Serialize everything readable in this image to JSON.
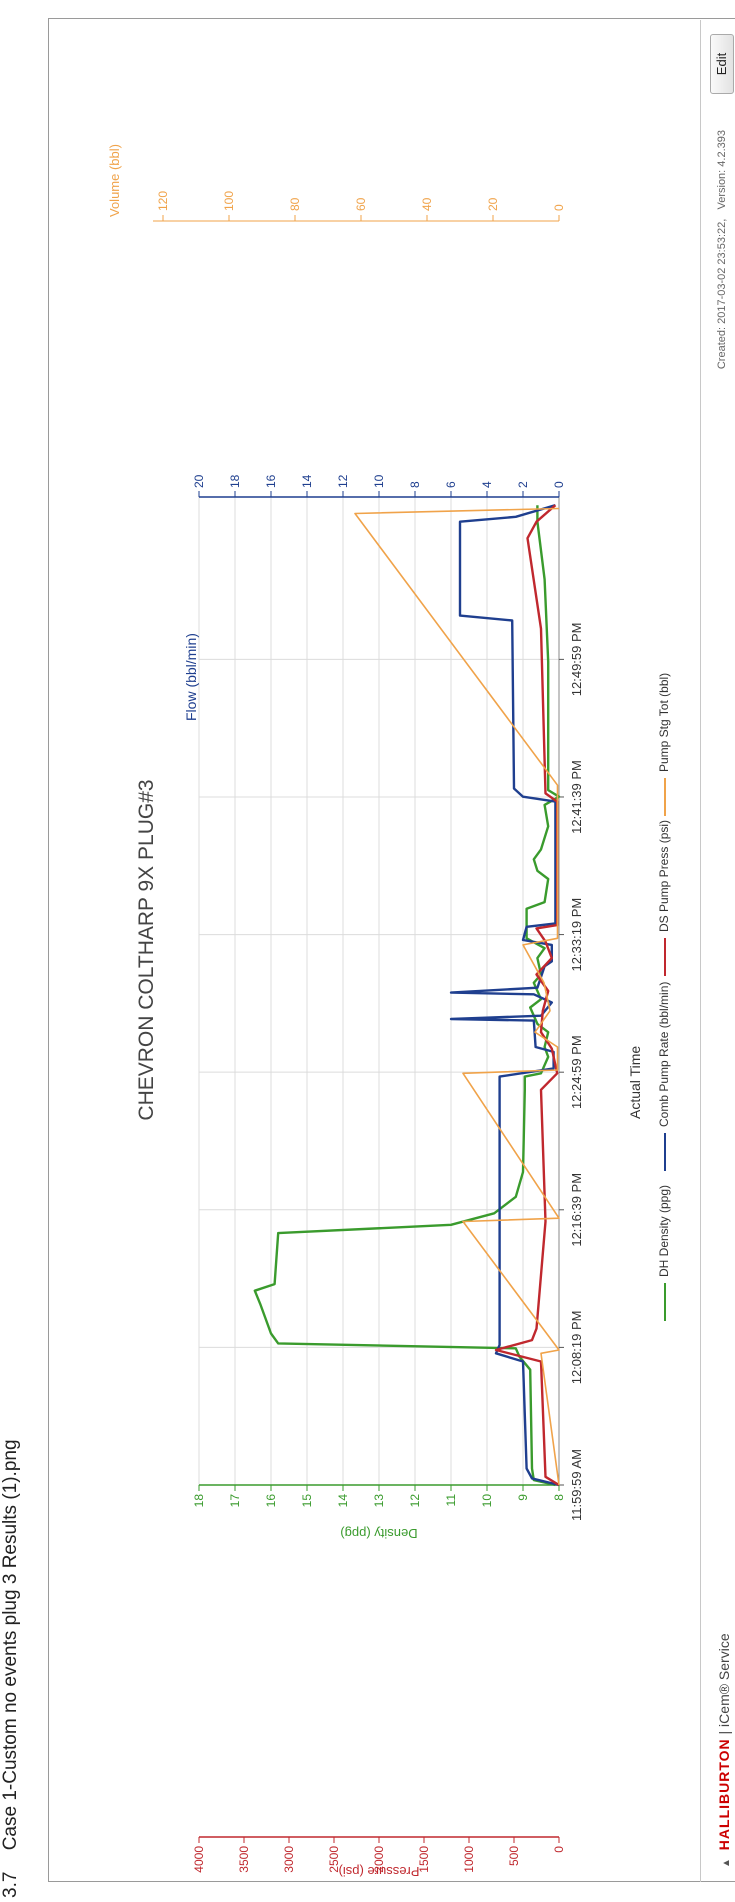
{
  "page_header": {
    "section": "3.7",
    "filename": "Case 1-Custom no events plug 3 Results (1).png"
  },
  "chart_data": {
    "type": "line",
    "title": "CHEVRON COLTHARP 9X PLUG#3",
    "xlabel": "Actual Time",
    "x_ticks": [
      "11:59:59 AM",
      "12:08:19 PM",
      "12:16:39 PM",
      "12:24:59 PM",
      "12:33:19 PM",
      "12:41:39 PM",
      "12:49:59 PM"
    ],
    "x_range_minutes": [
      0,
      60
    ],
    "axes": {
      "pressure": {
        "label": "Pressure (psi)",
        "range": [
          0,
          4000
        ],
        "ticks": [
          "0",
          "500",
          "1000",
          "1500",
          "2000",
          "2500",
          "3000",
          "3500",
          "4000"
        ],
        "color": "#c0282e"
      },
      "density": {
        "label": "Density (ppg)",
        "range": [
          8,
          18
        ],
        "ticks": [
          "8",
          "9",
          "10",
          "11",
          "12",
          "13",
          "14",
          "15",
          "16",
          "17",
          "18"
        ],
        "color": "#3a9b2d"
      },
      "flow": {
        "label": "Flow (bbl/min)",
        "range": [
          0,
          20
        ],
        "ticks": [
          "0",
          "2",
          "4",
          "6",
          "8",
          "10",
          "12",
          "14",
          "16",
          "18",
          "20"
        ],
        "color": "#1f3f8f"
      },
      "volume": {
        "label": "Volume (bbl)",
        "range": [
          0,
          120
        ],
        "ticks": [
          "0",
          "20",
          "40",
          "60",
          "80",
          "100",
          "120"
        ],
        "color": "#f0a34a"
      }
    },
    "grid": true,
    "legend_position": "bottom",
    "series": [
      {
        "name": "DH Density (ppg)",
        "axis": "density",
        "color": "#3a9b2d",
        "points": [
          [
            0,
            8.1
          ],
          [
            0.3,
            8.7
          ],
          [
            1,
            8.75
          ],
          [
            7,
            8.8
          ],
          [
            7.8,
            9.1
          ],
          [
            8.3,
            9.2
          ],
          [
            8.6,
            15.8
          ],
          [
            9.2,
            16.0
          ],
          [
            11,
            16.3
          ],
          [
            11.8,
            16.45
          ],
          [
            12.2,
            15.9
          ],
          [
            15.3,
            15.8
          ],
          [
            15.8,
            11.0
          ],
          [
            16.5,
            9.8
          ],
          [
            17.5,
            9.2
          ],
          [
            19,
            9.0
          ],
          [
            24,
            8.95
          ],
          [
            24.8,
            8.95
          ],
          [
            25,
            8.5
          ],
          [
            26,
            8.3
          ],
          [
            26.6,
            8.4
          ],
          [
            27.5,
            8.3
          ],
          [
            28,
            8.6
          ],
          [
            29,
            8.8
          ],
          [
            29.5,
            8.5
          ],
          [
            30.5,
            8.7
          ],
          [
            31,
            8.5
          ],
          [
            32,
            8.6
          ],
          [
            32.6,
            8.4
          ],
          [
            33.2,
            8.9
          ],
          [
            35,
            8.9
          ],
          [
            35.4,
            8.4
          ],
          [
            36.8,
            8.3
          ],
          [
            37.3,
            8.6
          ],
          [
            38,
            8.7
          ],
          [
            38.6,
            8.5
          ],
          [
            40,
            8.3
          ],
          [
            41.3,
            8.4
          ],
          [
            41.8,
            8.0
          ],
          [
            42.2,
            8.3
          ],
          [
            44,
            8.3
          ],
          [
            50,
            8.3
          ],
          [
            55,
            8.4
          ],
          [
            58.5,
            8.6
          ],
          [
            59.5,
            8.6
          ]
        ]
      },
      {
        "name": "Comb Pump Rate (bbl/min)",
        "axis": "flow",
        "color": "#1f3f8f",
        "points": [
          [
            0,
            0
          ],
          [
            0.4,
            1.5
          ],
          [
            1,
            1.8
          ],
          [
            7.5,
            2.0
          ],
          [
            8,
            3.5
          ],
          [
            8.5,
            3.3
          ],
          [
            24.8,
            3.3
          ],
          [
            25.3,
            0.3
          ],
          [
            26.3,
            0.3
          ],
          [
            26.6,
            1.3
          ],
          [
            28.2,
            1.4
          ],
          [
            28.3,
            6.0
          ],
          [
            28.5,
            1.0
          ],
          [
            29.3,
            0.4
          ],
          [
            29.8,
            1.4
          ],
          [
            29.9,
            6.0
          ],
          [
            30.2,
            1.2
          ],
          [
            31.5,
            0.8
          ],
          [
            31.8,
            0.4
          ],
          [
            32.8,
            0.4
          ],
          [
            33.1,
            2.0
          ],
          [
            33.9,
            1.8
          ],
          [
            34.1,
            0.2
          ],
          [
            41.5,
            0.2
          ],
          [
            41.8,
            2.0
          ],
          [
            42.3,
            2.5
          ],
          [
            52.5,
            2.6
          ],
          [
            52.8,
            5.5
          ],
          [
            58.5,
            5.5
          ],
          [
            58.8,
            2.4
          ],
          [
            59.5,
            0.2
          ]
        ]
      },
      {
        "name": "DS Pump Press (psi)",
        "axis": "pressure",
        "color": "#c0282e",
        "points": [
          [
            0,
            0
          ],
          [
            0.5,
            150
          ],
          [
            7.5,
            200
          ],
          [
            8.2,
            700
          ],
          [
            8.8,
            300
          ],
          [
            9.5,
            250
          ],
          [
            16,
            150
          ],
          [
            24,
            200
          ],
          [
            25,
            20
          ],
          [
            26.5,
            80
          ],
          [
            27.5,
            200
          ],
          [
            28.8,
            180
          ],
          [
            30,
            120
          ],
          [
            31,
            250
          ],
          [
            32,
            80
          ],
          [
            33,
            150
          ],
          [
            33.8,
            250
          ],
          [
            34,
            20
          ],
          [
            41.5,
            20
          ],
          [
            42,
            150
          ],
          [
            52,
            200
          ],
          [
            57.5,
            350
          ],
          [
            58.5,
            250
          ],
          [
            59.5,
            40
          ]
        ]
      },
      {
        "name": "Pump Stg Tot (bbl)",
        "axis": "volume",
        "color": "#f0a34a",
        "points": [
          [
            0,
            0
          ],
          [
            8,
            6
          ],
          [
            8.2,
            0
          ],
          [
            16,
            32
          ],
          [
            16.2,
            0
          ],
          [
            25,
            32
          ],
          [
            25.2,
            0.5
          ],
          [
            26.6,
            0.5
          ],
          [
            27.5,
            8
          ],
          [
            28.8,
            3
          ],
          [
            30.5,
            5
          ],
          [
            32.8,
            12
          ],
          [
            33.2,
            0.5
          ],
          [
            42.5,
            0.5
          ],
          [
            59,
            68
          ],
          [
            59.3,
            0
          ]
        ]
      }
    ]
  },
  "footer": {
    "brand_logo": "HALLIBURTON",
    "brand_separator": "|",
    "service": "iCem® Service",
    "created": "Created: 2017-03-02  23:53:22,",
    "version": "Version: 4.2.393",
    "edit_button": "Edit"
  }
}
